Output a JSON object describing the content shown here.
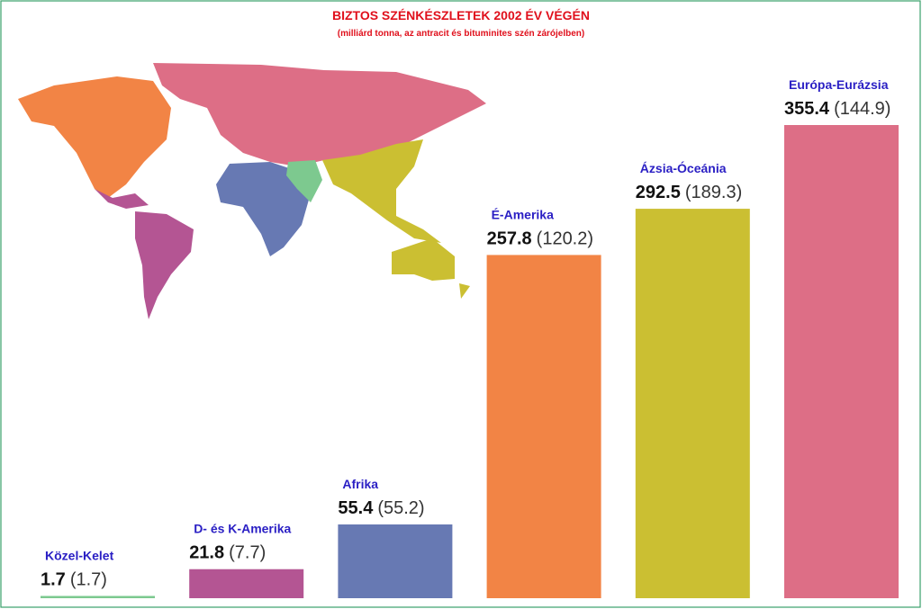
{
  "chart_data": {
    "type": "bar",
    "title": "BIZTOS SZÉNKÉSZLETEK 2002 ÉV VÉGÉN",
    "subtitle": "(milliárd tonna, az antracit és bituminites szén zárójelben)",
    "categories": [
      "Közel-Kelet",
      "D- és K-Amerika",
      "Afrika",
      "É-Amerika",
      "Ázsia-Óceánia",
      "Európa-Eurázsia"
    ],
    "values": [
      1.7,
      21.8,
      55.4,
      257.8,
      292.5,
      355.4
    ],
    "colors": [
      "#7dc98f",
      "#b45593",
      "#6779b3",
      "#f28445",
      "#cbbf32",
      "#dd6e86"
    ],
    "anthracite_bituminous": {
      "values": [
        1.7,
        7.7,
        55.2,
        120.2,
        189.3,
        144.9
      ],
      "value_labels": [
        "(1.7)",
        "(7.7)",
        "(55.2)",
        "(120.2)",
        "(189.3)",
        "(144.9)"
      ]
    }
  }
}
